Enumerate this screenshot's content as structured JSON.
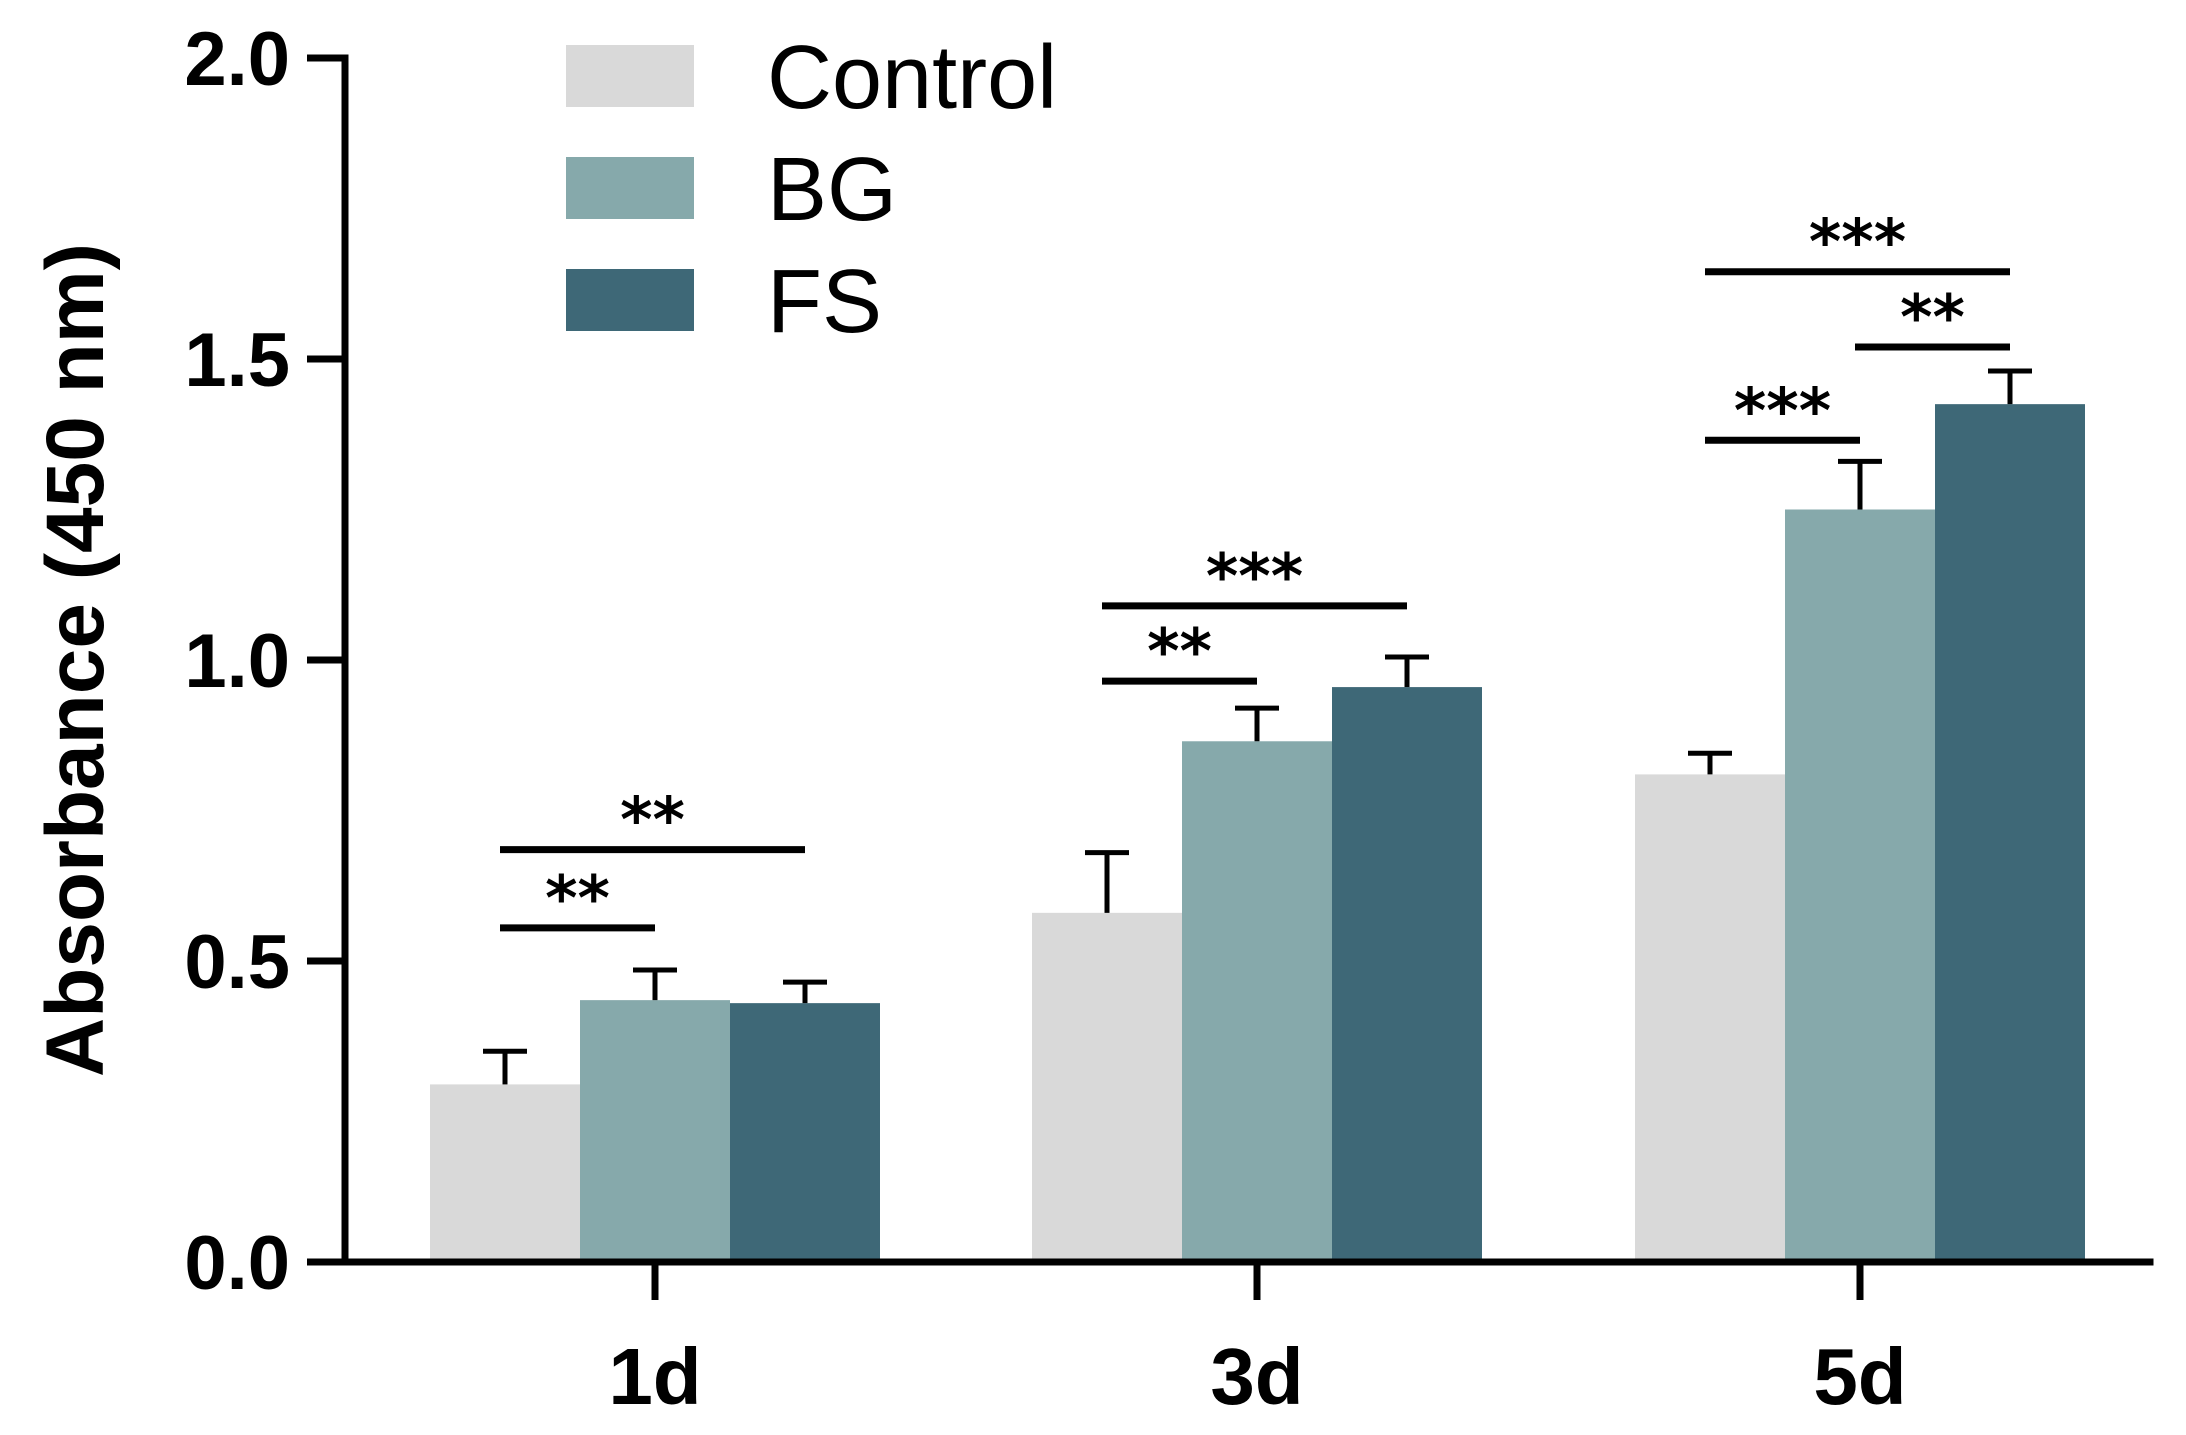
{
  "chart_data": {
    "type": "bar",
    "title": "",
    "xlabel": "",
    "ylabel": "Absorbance (450 nm)",
    "ylim": [
      0,
      2.0
    ],
    "y_ticks": [
      "0.0",
      "0.5",
      "1.0",
      "1.5",
      "2.0"
    ],
    "categories": [
      "1d",
      "3d",
      "5d"
    ],
    "legend_position": "top-left",
    "series": [
      {
        "name": "Control",
        "color": "#d9d9d9",
        "values": [
          0.295,
          0.58,
          0.81
        ],
        "errors": [
          0.055,
          0.1,
          0.035
        ]
      },
      {
        "name": "BG",
        "color": "#86a9ab",
        "values": [
          0.435,
          0.865,
          1.25
        ],
        "errors": [
          0.05,
          0.055,
          0.08
        ]
      },
      {
        "name": "FS",
        "color": "#3e6877",
        "values": [
          0.43,
          0.955,
          1.425
        ],
        "errors": [
          0.035,
          0.05,
          0.055
        ]
      }
    ],
    "significance": [
      {
        "category": 0,
        "from": 0,
        "to": 1,
        "level": 0.555,
        "label": "**"
      },
      {
        "category": 0,
        "from": 0,
        "to": 2,
        "level": 0.685,
        "label": "**"
      },
      {
        "category": 1,
        "from": 0,
        "to": 1,
        "level": 0.965,
        "label": "**"
      },
      {
        "category": 1,
        "from": 0,
        "to": 2,
        "level": 1.09,
        "label": "***"
      },
      {
        "category": 2,
        "from": 0,
        "to": 1,
        "level": 1.365,
        "label": "***"
      },
      {
        "category": 2,
        "from": 1,
        "to": 2,
        "level": 1.52,
        "label": "**"
      },
      {
        "category": 2,
        "from": 0,
        "to": 2,
        "level": 1.645,
        "label": "***"
      }
    ]
  }
}
